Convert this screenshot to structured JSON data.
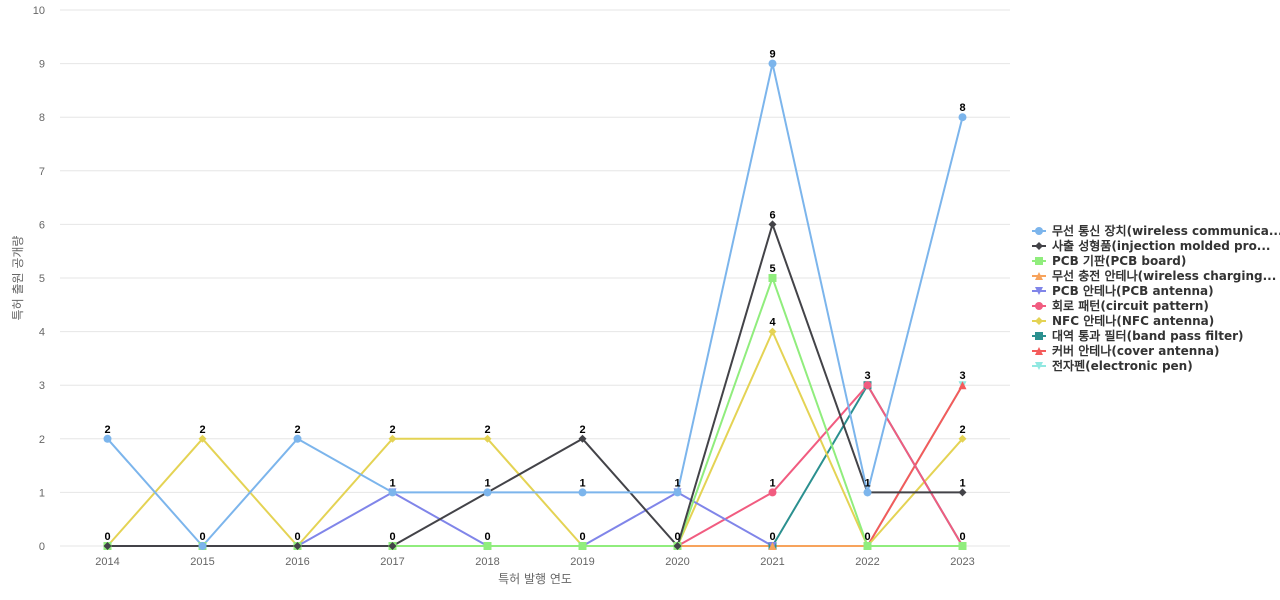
{
  "chart_data": {
    "type": "line",
    "title": "",
    "xlabel": "특허 발행 연도",
    "ylabel": "특허 출원 공개량",
    "categories": [
      "2014",
      "2015",
      "2016",
      "2017",
      "2018",
      "2019",
      "2020",
      "2021",
      "2022",
      "2023"
    ],
    "ylim": [
      0,
      10
    ],
    "yticks": [
      0,
      1,
      2,
      3,
      4,
      5,
      6,
      7,
      8,
      9,
      10
    ],
    "grid": true,
    "legend_position": "right",
    "series": [
      {
        "name": "무선 통신 장치(wireless communica...",
        "color": "#7cb5ec",
        "marker": "circle",
        "values": [
          2,
          0,
          2,
          1,
          1,
          1,
          1,
          9,
          1,
          8
        ]
      },
      {
        "name": "사출 성형품(injection molded pro...",
        "color": "#434348",
        "marker": "diamond",
        "values": [
          0,
          0,
          0,
          0,
          1,
          2,
          0,
          6,
          1,
          1
        ]
      },
      {
        "name": "PCB 기판(PCB board)",
        "color": "#90ed7d",
        "marker": "square",
        "values": [
          0,
          0,
          0,
          0,
          0,
          0,
          0,
          5,
          0,
          0
        ]
      },
      {
        "name": "무선 충전 안테나(wireless charging...",
        "color": "#f7a35c",
        "marker": "triangle",
        "values": [
          0,
          0,
          0,
          0,
          0,
          0,
          0,
          0,
          0,
          0
        ]
      },
      {
        "name": "PCB 안테나(PCB antenna)",
        "color": "#8085e9",
        "marker": "triangle-down",
        "values": [
          0,
          0,
          0,
          1,
          0,
          0,
          1,
          0,
          0,
          0
        ]
      },
      {
        "name": "회로 패턴(circuit pattern)",
        "color": "#f15c80",
        "marker": "circle",
        "values": [
          0,
          0,
          0,
          0,
          0,
          0,
          0,
          1,
          3,
          0
        ]
      },
      {
        "name": "NFC 안테나(NFC antenna)",
        "color": "#e4d354",
        "marker": "diamond",
        "values": [
          0,
          2,
          0,
          2,
          2,
          0,
          0,
          4,
          0,
          2
        ]
      },
      {
        "name": "대역 통과 필터(band pass filter)",
        "color": "#2b908f",
        "marker": "square",
        "values": [
          0,
          0,
          0,
          0,
          0,
          0,
          0,
          0,
          3,
          0
        ]
      },
      {
        "name": "커버 안테나(cover antenna)",
        "color": "#f45b5b",
        "marker": "triangle",
        "values": [
          0,
          0,
          0,
          0,
          0,
          0,
          0,
          0,
          0,
          3
        ]
      },
      {
        "name": "전자펜(electronic pen)",
        "color": "#91e8e1",
        "marker": "triangle-down",
        "values": [
          0,
          0,
          0,
          0,
          0,
          0,
          0,
          0,
          0,
          3
        ]
      }
    ],
    "data_labels": [
      {
        "x": "2014",
        "y": 2,
        "text": "2"
      },
      {
        "x": "2014",
        "y": 0,
        "text": "0"
      },
      {
        "x": "2015",
        "y": 2,
        "text": "2"
      },
      {
        "x": "2015",
        "y": 0,
        "text": "0"
      },
      {
        "x": "2016",
        "y": 2,
        "text": "2"
      },
      {
        "x": "2016",
        "y": 0,
        "text": "0"
      },
      {
        "x": "2017",
        "y": 2,
        "text": "2"
      },
      {
        "x": "2017",
        "y": 1,
        "text": "1"
      },
      {
        "x": "2017",
        "y": 0,
        "text": "0"
      },
      {
        "x": "2018",
        "y": 2,
        "text": "2"
      },
      {
        "x": "2018",
        "y": 1,
        "text": "1"
      },
      {
        "x": "2018",
        "y": 0,
        "text": "0"
      },
      {
        "x": "2019",
        "y": 2,
        "text": "2"
      },
      {
        "x": "2019",
        "y": 1,
        "text": "1"
      },
      {
        "x": "2019",
        "y": 0,
        "text": "0"
      },
      {
        "x": "2020",
        "y": 1,
        "text": "1"
      },
      {
        "x": "2020",
        "y": 0,
        "text": "0"
      },
      {
        "x": "2021",
        "y": 9,
        "text": "9"
      },
      {
        "x": "2021",
        "y": 6,
        "text": "6"
      },
      {
        "x": "2021",
        "y": 5,
        "text": "5"
      },
      {
        "x": "2021",
        "y": 4,
        "text": "4"
      },
      {
        "x": "2021",
        "y": 1,
        "text": "1"
      },
      {
        "x": "2021",
        "y": 0,
        "text": "0"
      },
      {
        "x": "2022",
        "y": 3,
        "text": "3"
      },
      {
        "x": "2022",
        "y": 1,
        "text": "1"
      },
      {
        "x": "2022",
        "y": 0,
        "text": "0"
      },
      {
        "x": "2023",
        "y": 8,
        "text": "8"
      },
      {
        "x": "2023",
        "y": 3,
        "text": "3"
      },
      {
        "x": "2023",
        "y": 2,
        "text": "2"
      },
      {
        "x": "2023",
        "y": 1,
        "text": "1"
      },
      {
        "x": "2023",
        "y": 0,
        "text": "0"
      }
    ]
  }
}
